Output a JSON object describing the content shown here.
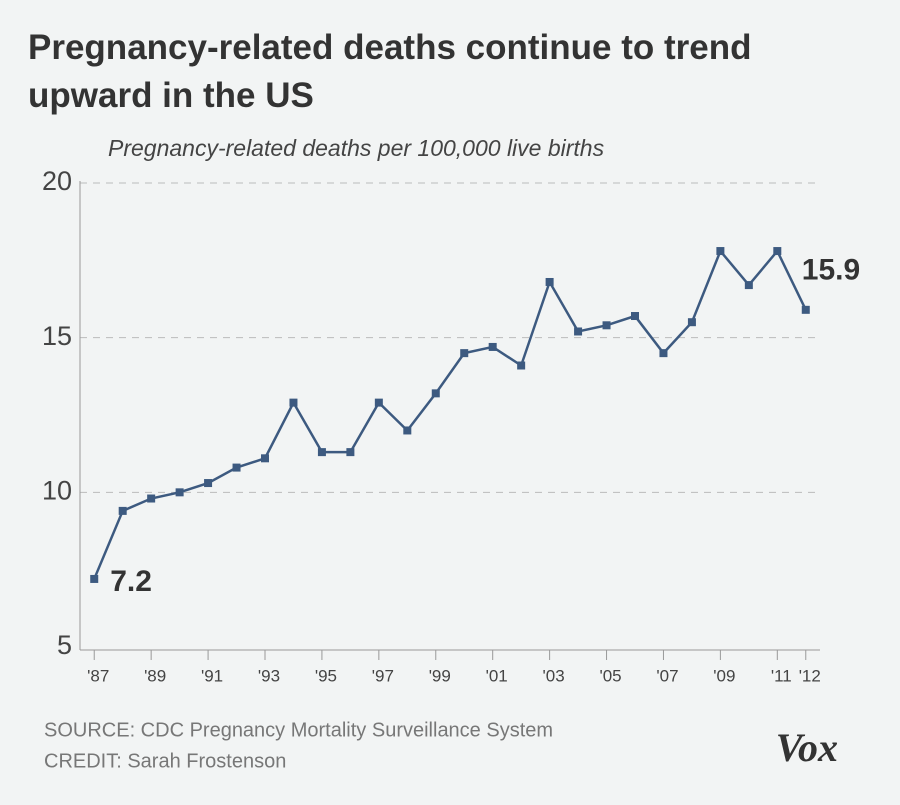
{
  "chart_data": {
    "type": "line",
    "title": "Pregnancy-related deaths continue to trend upward in the US",
    "subtitle": "Pregnancy-related deaths per 100,000 live births",
    "x": [
      1987,
      1988,
      1989,
      1990,
      1991,
      1992,
      1993,
      1994,
      1995,
      1996,
      1997,
      1998,
      1999,
      2000,
      2001,
      2002,
      2003,
      2004,
      2005,
      2006,
      2007,
      2008,
      2009,
      2010,
      2011,
      2012
    ],
    "series": [
      {
        "name": "Pregnancy-related deaths per 100,000 live births",
        "color": "#3d5a80",
        "values": [
          7.2,
          9.4,
          9.8,
          10.0,
          10.3,
          10.8,
          11.1,
          12.9,
          11.3,
          11.3,
          12.9,
          12.0,
          13.2,
          14.5,
          14.7,
          14.1,
          16.8,
          15.2,
          15.4,
          15.7,
          14.5,
          15.5,
          17.8,
          16.7,
          17.8,
          15.9
        ]
      }
    ],
    "xlim": [
      1986.5,
      2012.5
    ],
    "xticks": [
      {
        "value": 1987,
        "label": "'87"
      },
      {
        "value": 1989,
        "label": "'89"
      },
      {
        "value": 1991,
        "label": "'91"
      },
      {
        "value": 1993,
        "label": "'93"
      },
      {
        "value": 1995,
        "label": "'95"
      },
      {
        "value": 1997,
        "label": "'97"
      },
      {
        "value": 1999,
        "label": "'99"
      },
      {
        "value": 2001,
        "label": "'01"
      },
      {
        "value": 2003,
        "label": "'03"
      },
      {
        "value": 2005,
        "label": "'05"
      },
      {
        "value": 2007,
        "label": "'07"
      },
      {
        "value": 2009,
        "label": "'09"
      },
      {
        "value": 2011,
        "label": "'11"
      },
      {
        "value": 2012,
        "label": "'12"
      }
    ],
    "ylim": [
      5,
      20
    ],
    "yticks": [
      5,
      10,
      15,
      20
    ],
    "grid": true,
    "source": "SOURCE: CDC Pregnancy Mortality Surveillance System",
    "credit": "CREDIT: Sarah Frostenson",
    "logo": "Vox"
  }
}
